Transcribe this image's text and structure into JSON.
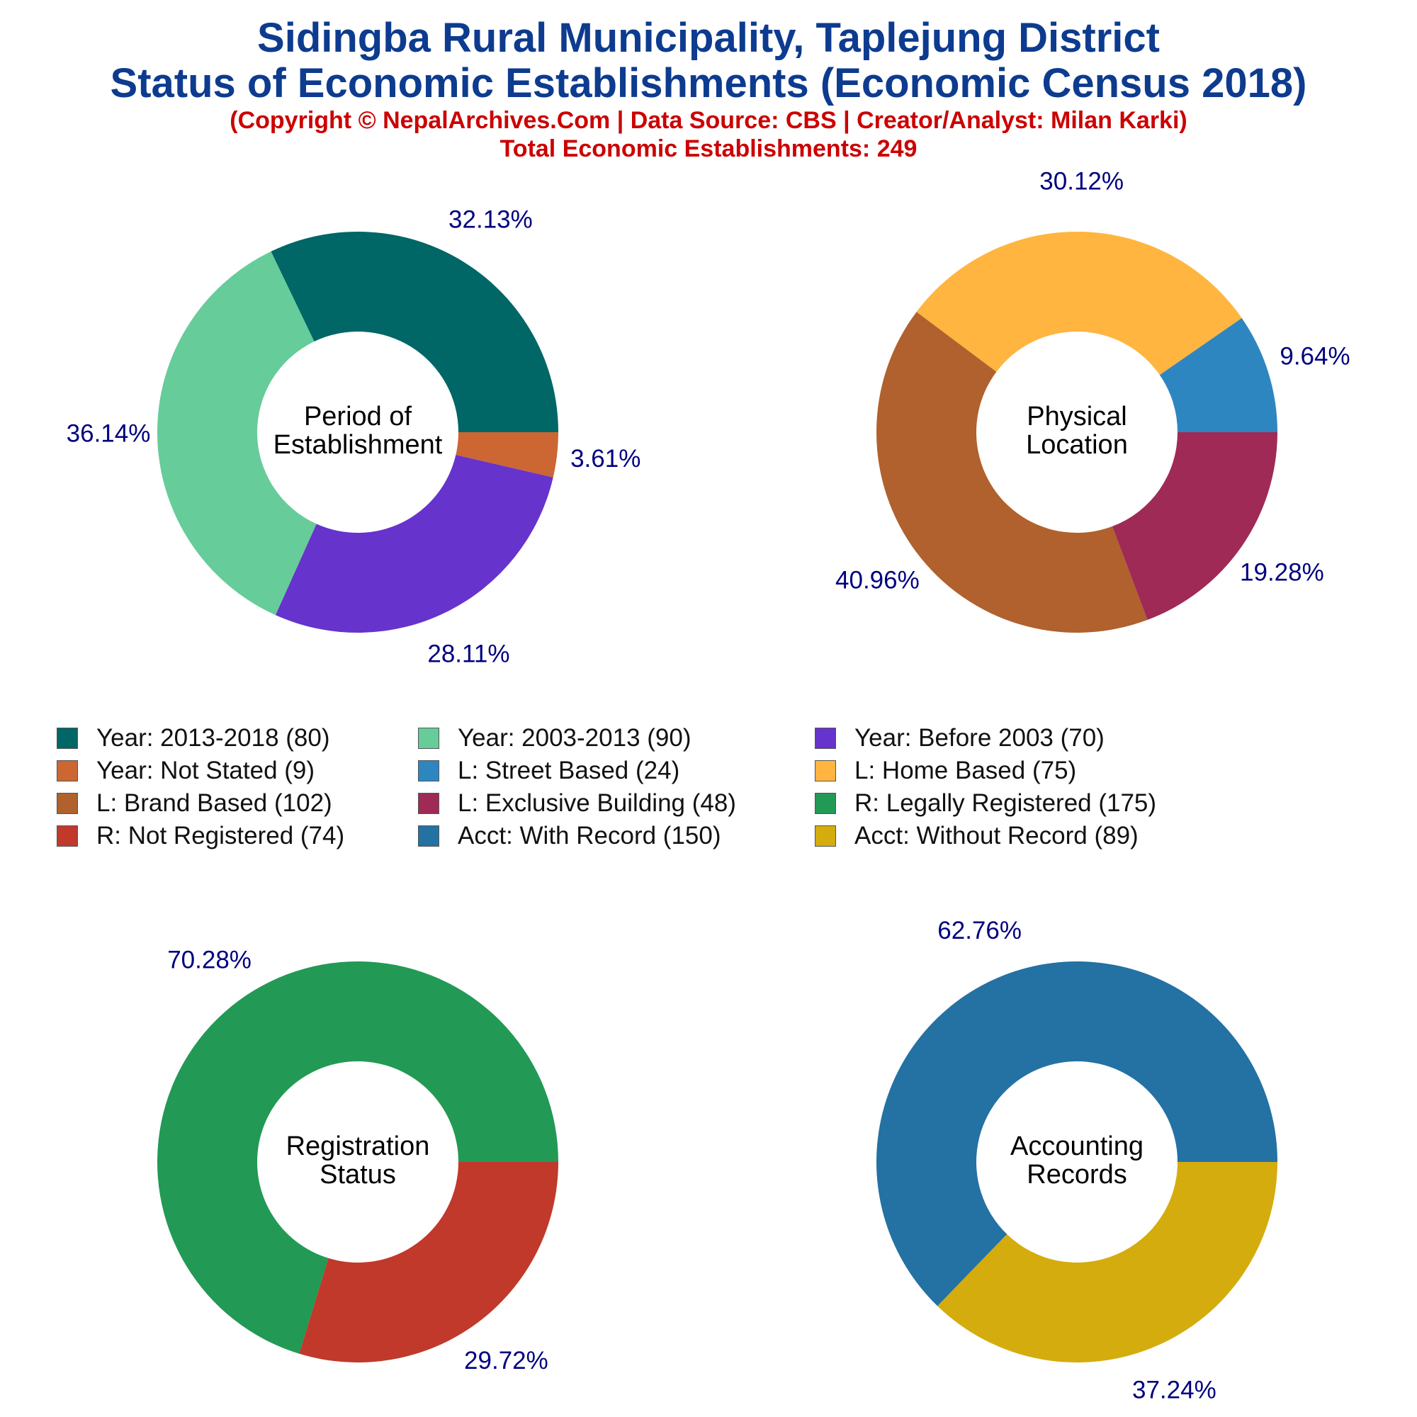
{
  "header": {
    "title_line1": "Sidingba Rural Municipality, Taplejung District",
    "title_line2": "Status of Economic Establishments (Economic Census 2018)",
    "copyright": "(Copyright © NepalArchives.Com | Data Source: CBS | Creator/Analyst: Milan Karki)",
    "total": "Total Economic Establishments: 249"
  },
  "chart_data": [
    {
      "type": "pie",
      "title": "Period of Establishment",
      "center_label": [
        "Period of",
        "Establishment"
      ],
      "start_angle_deg": 0,
      "direction": "counterclockwise",
      "slices": [
        {
          "label": "Year: 2013-2018",
          "value": 80,
          "percent_label": "32.13%",
          "color": "#006666"
        },
        {
          "label": "Year: 2003-2013",
          "value": 90,
          "percent_label": "36.14%",
          "color": "#66cc99"
        },
        {
          "label": "Year: Before 2003",
          "value": 70,
          "percent_label": "28.11%",
          "color": "#6633cc"
        },
        {
          "label": "Year: Not Stated",
          "value": 9,
          "percent_label": "3.61%",
          "color": "#cc6633"
        }
      ]
    },
    {
      "type": "pie",
      "title": "Physical Location",
      "center_label": [
        "Physical",
        "Location"
      ],
      "start_angle_deg": 0,
      "direction": "counterclockwise",
      "slices": [
        {
          "label": "L: Street Based",
          "value": 24,
          "percent_label": "9.64%",
          "color": "#2e86c1"
        },
        {
          "label": "L: Home Based",
          "value": 75,
          "percent_label": "30.12%",
          "color": "#ffb53f"
        },
        {
          "label": "L: Brand Based",
          "value": 102,
          "percent_label": "40.96%",
          "color": "#b0612d"
        },
        {
          "label": "L: Exclusive Building",
          "value": 48,
          "percent_label": "19.28%",
          "color": "#9e2a55"
        }
      ]
    },
    {
      "type": "pie",
      "title": "Registration Status",
      "center_label": [
        "Registration",
        "Status"
      ],
      "start_angle_deg": 0,
      "direction": "counterclockwise",
      "slices": [
        {
          "label": "R: Legally Registered",
          "value": 175,
          "percent_label": "70.28%",
          "color": "#229955"
        },
        {
          "label": "R: Not Registered",
          "value": 74,
          "percent_label": "29.72%",
          "color": "#c0392b"
        }
      ]
    },
    {
      "type": "pie",
      "title": "Accounting Records",
      "center_label": [
        "Accounting",
        "Records"
      ],
      "start_angle_deg": 0,
      "direction": "counterclockwise",
      "slices": [
        {
          "label": "Acct: With Record",
          "value": 150,
          "percent_label": "62.76%",
          "color": "#2471a3"
        },
        {
          "label": "Acct: Without Record",
          "value": 89,
          "percent_label": "37.24%",
          "color": "#d4ac0d"
        }
      ]
    }
  ],
  "legend": [
    {
      "text": "Year: 2013-2018 (80)",
      "color": "#006666"
    },
    {
      "text": "Year: 2003-2013 (90)",
      "color": "#66cc99"
    },
    {
      "text": "Year: Before 2003 (70)",
      "color": "#6633cc"
    },
    {
      "text": "Year: Not Stated (9)",
      "color": "#cc6633"
    },
    {
      "text": "L: Street Based (24)",
      "color": "#2e86c1"
    },
    {
      "text": "L: Home Based (75)",
      "color": "#ffb53f"
    },
    {
      "text": "L: Brand Based (102)",
      "color": "#b0612d"
    },
    {
      "text": "L: Exclusive Building (48)",
      "color": "#9e2a55"
    },
    {
      "text": "R: Legally Registered (175)",
      "color": "#229955"
    },
    {
      "text": "R: Not Registered (74)",
      "color": "#c0392b"
    },
    {
      "text": "Acct: With Record (150)",
      "color": "#2471a3"
    },
    {
      "text": "Acct: Without Record (89)",
      "color": "#d4ac0d"
    }
  ],
  "colors": {
    "title": "#0d3b8f",
    "subtitle": "#cc0000",
    "percent_label": "#000080"
  }
}
